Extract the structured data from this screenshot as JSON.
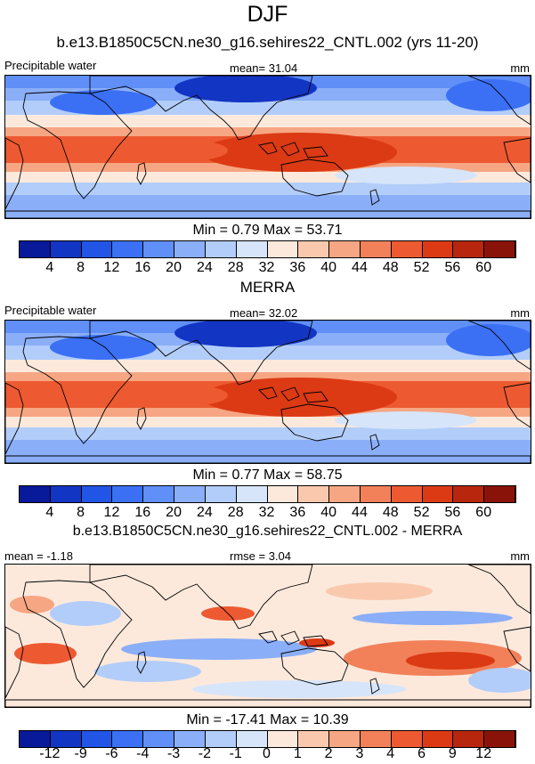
{
  "figure": {
    "title": "DJF",
    "subtitle_model": "b.e13.B1850C5CN.ne30_g16.sehires22_CNTL.002 (yrs 11-20)",
    "subtitle_obs": "MERRA",
    "subtitle_diff": "b.e13.B1850C5CN.ne30_g16.sehires22_CNTL.002 - MERRA"
  },
  "chart_data": [
    {
      "type": "heatmap",
      "panel": "model",
      "title": "b.e13.B1850C5CN.ne30_g16.sehires22_CNTL.002 (yrs 11-20)",
      "variable": "Precipitable water",
      "units": "mm",
      "mean_text": "mean=  31.04",
      "mean": 31.04,
      "minmax_text": "Min =   0.79 Max =  53.71",
      "min": 0.79,
      "max": 53.71,
      "colorbar_levels": [
        "4",
        "8",
        "12",
        "16",
        "20",
        "24",
        "28",
        "32",
        "36",
        "40",
        "44",
        "48",
        "52",
        "56",
        "60"
      ],
      "colors": [
        "#08199a",
        "#1335c4",
        "#2155e6",
        "#3b70f5",
        "#5f8ff7",
        "#8aaef8",
        "#b2cdf9",
        "#d6e5fa",
        "#fde9dc",
        "#fac9ad",
        "#f6a683",
        "#f2815a",
        "#ed5a31",
        "#dc3a14",
        "#b8260d",
        "#8a1309"
      ]
    },
    {
      "type": "heatmap",
      "panel": "obs",
      "title": "MERRA",
      "variable": "Precipitable water",
      "units": "mm",
      "mean_text": "mean=  32.02",
      "mean": 32.02,
      "minmax_text": "Min =   0.77 Max =  58.75",
      "min": 0.77,
      "max": 58.75,
      "colorbar_levels": [
        "4",
        "8",
        "12",
        "16",
        "20",
        "24",
        "28",
        "32",
        "36",
        "40",
        "44",
        "48",
        "52",
        "56",
        "60"
      ],
      "colors": [
        "#08199a",
        "#1335c4",
        "#2155e6",
        "#3b70f5",
        "#5f8ff7",
        "#8aaef8",
        "#b2cdf9",
        "#d6e5fa",
        "#fde9dc",
        "#fac9ad",
        "#f6a683",
        "#f2815a",
        "#ed5a31",
        "#dc3a14",
        "#b8260d",
        "#8a1309"
      ]
    },
    {
      "type": "heatmap",
      "panel": "difference",
      "title": "b.e13.B1850C5CN.ne30_g16.sehires22_CNTL.002 - MERRA",
      "units": "mm",
      "mean_text": "mean =  -1.18",
      "mean": -1.18,
      "rmse_text": "rmse =  3.04",
      "rmse": 3.04,
      "minmax_text": "Min = -17.41 Max =  10.39",
      "min": -17.41,
      "max": 10.39,
      "colorbar_levels": [
        "-12",
        "-9",
        "-6",
        "-4",
        "-3",
        "-2",
        "-1",
        "0",
        "1",
        "2",
        "3",
        "4",
        "6",
        "9",
        "12"
      ],
      "colors": [
        "#08199a",
        "#1335c4",
        "#2155e6",
        "#3b70f5",
        "#5f8ff7",
        "#8aaef8",
        "#b2cdf9",
        "#d6e5fa",
        "#fde9dc",
        "#fac9ad",
        "#f6a683",
        "#f2815a",
        "#ed5a31",
        "#dc3a14",
        "#b8260d",
        "#8a1309"
      ]
    }
  ]
}
